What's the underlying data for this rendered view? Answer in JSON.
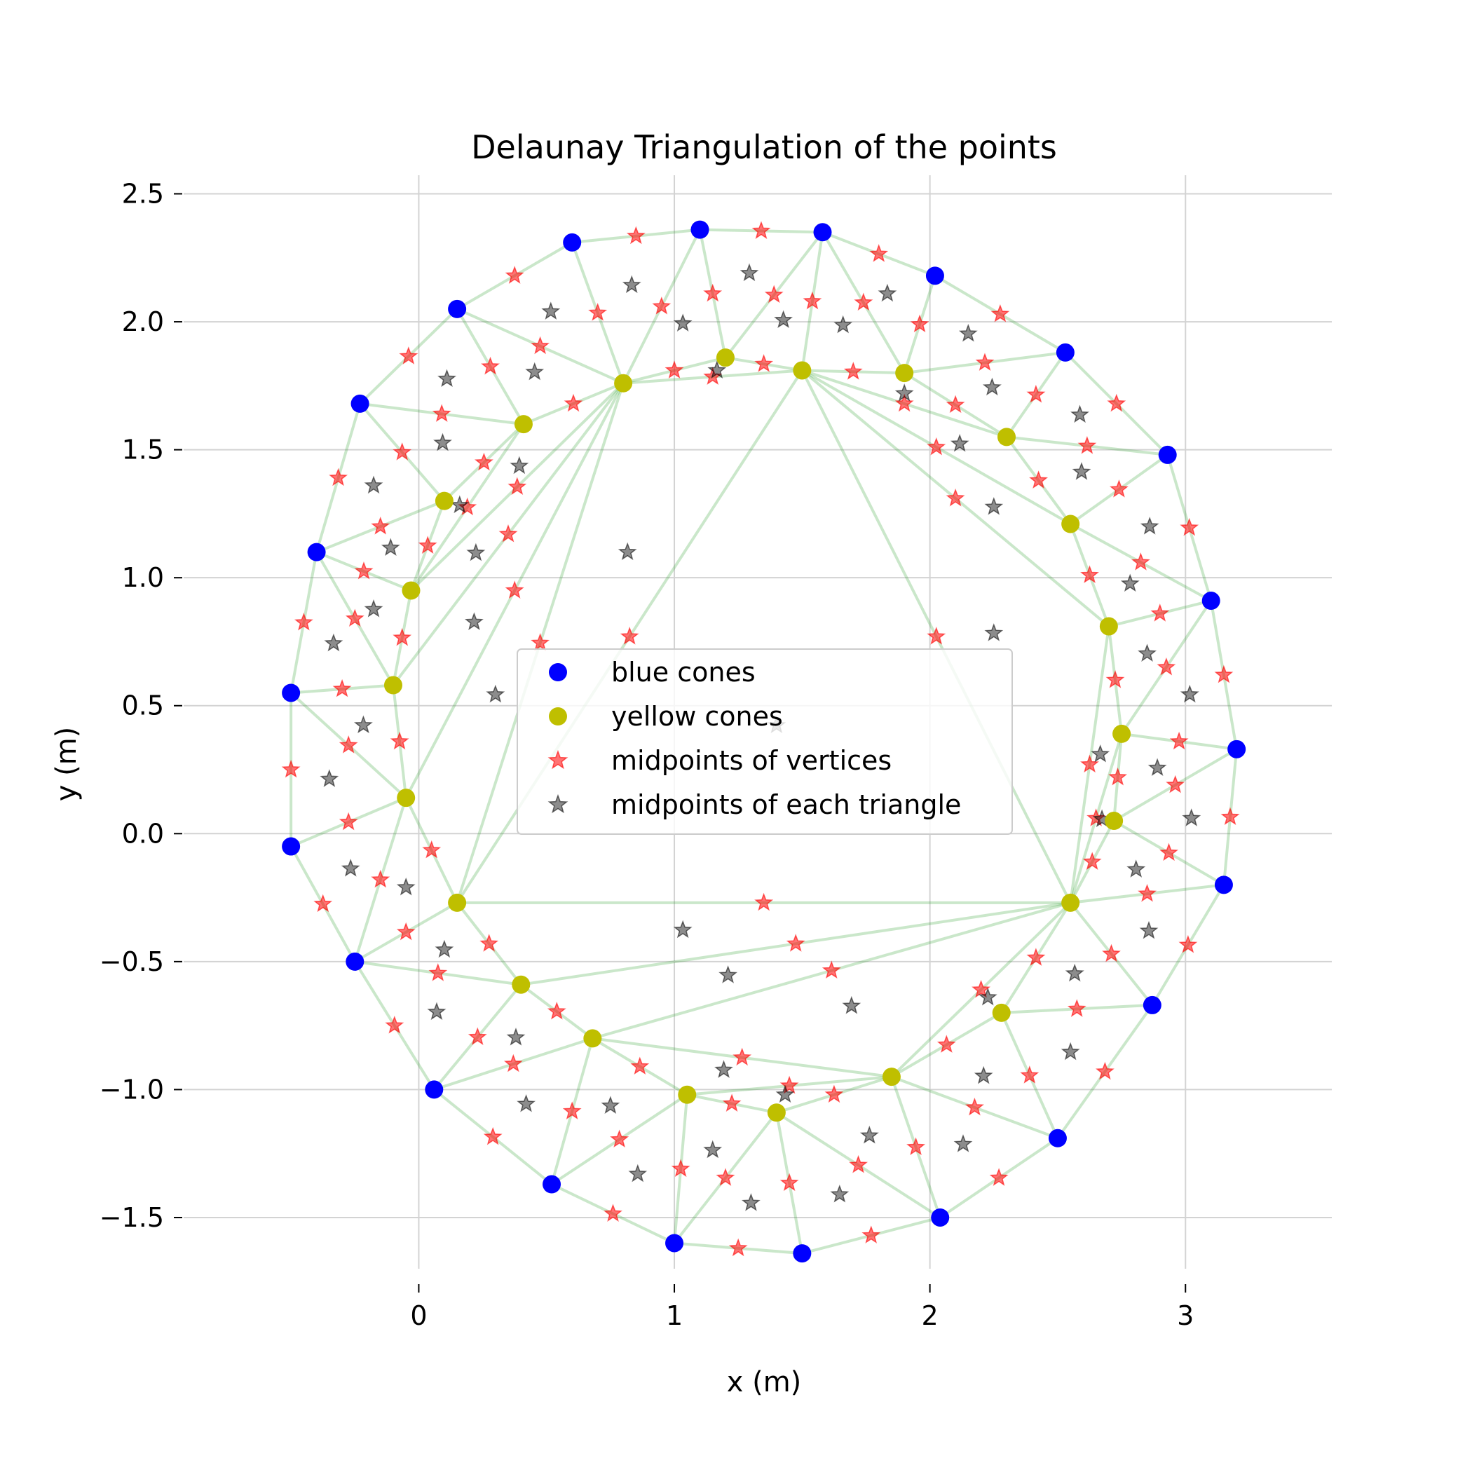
{
  "chart_data": {
    "type": "scatter",
    "title": "Delaunay Triangulation of the points",
    "xlabel": "x (m)",
    "ylabel": "y (m)",
    "xlim": [
      -0.92,
      3.6
    ],
    "ylim": [
      -1.7,
      2.6
    ],
    "xticks": [
      0,
      1,
      2,
      3
    ],
    "yticks": [
      -1.5,
      -1.0,
      -0.5,
      0.0,
      0.5,
      1.0,
      1.5,
      2.0,
      2.5
    ],
    "xtick_labels": [
      "0",
      "1",
      "2",
      "3"
    ],
    "ytick_labels": [
      "−1.5",
      "−1.0",
      "−0.5",
      "0.0",
      "0.5",
      "1.0",
      "1.5",
      "2.0",
      "2.5"
    ],
    "grid": true,
    "legend_position": "center",
    "series": [
      {
        "name": "blue cones",
        "marker": "circle",
        "color": "#0000ff",
        "points": [
          [
            -0.5,
            0.55
          ],
          [
            -0.5,
            -0.05
          ],
          [
            -0.25,
            -0.5
          ],
          [
            0.06,
            -1.0
          ],
          [
            0.52,
            -1.37
          ],
          [
            1.0,
            -1.6
          ],
          [
            1.5,
            -1.64
          ],
          [
            2.04,
            -1.5
          ],
          [
            2.5,
            -1.19
          ],
          [
            2.87,
            -0.67
          ],
          [
            3.15,
            -0.2
          ],
          [
            3.2,
            0.33
          ],
          [
            3.1,
            0.91
          ],
          [
            2.93,
            1.48
          ],
          [
            2.53,
            1.88
          ],
          [
            2.02,
            2.18
          ],
          [
            1.58,
            2.35
          ],
          [
            1.1,
            2.36
          ],
          [
            0.6,
            2.31
          ],
          [
            0.15,
            2.05
          ],
          [
            -0.23,
            1.68
          ],
          [
            -0.4,
            1.1
          ]
        ]
      },
      {
        "name": "yellow cones",
        "marker": "circle",
        "color": "#bfbf00",
        "points": [
          [
            0.1,
            1.3
          ],
          [
            0.41,
            1.6
          ],
          [
            0.8,
            1.76
          ],
          [
            1.2,
            1.86
          ],
          [
            1.5,
            1.81
          ],
          [
            1.9,
            1.8
          ],
          [
            2.3,
            1.55
          ],
          [
            2.55,
            1.21
          ],
          [
            2.7,
            0.81
          ],
          [
            2.75,
            0.39
          ],
          [
            2.72,
            0.05
          ],
          [
            2.55,
            -0.27
          ],
          [
            2.28,
            -0.7
          ],
          [
            1.85,
            -0.95
          ],
          [
            1.4,
            -1.09
          ],
          [
            1.05,
            -1.02
          ],
          [
            0.68,
            -0.8
          ],
          [
            0.4,
            -0.59
          ],
          [
            0.15,
            -0.27
          ],
          [
            -0.05,
            0.14
          ],
          [
            -0.1,
            0.58
          ],
          [
            -0.03,
            0.95
          ]
        ]
      },
      {
        "name": "midpoints of vertices",
        "marker": "star",
        "color": "#ff0000",
        "points": []
      },
      {
        "name": "midpoints of each triangle",
        "marker": "star",
        "color": "#000000",
        "points": []
      }
    ],
    "edge_color": "#2ca02c"
  }
}
